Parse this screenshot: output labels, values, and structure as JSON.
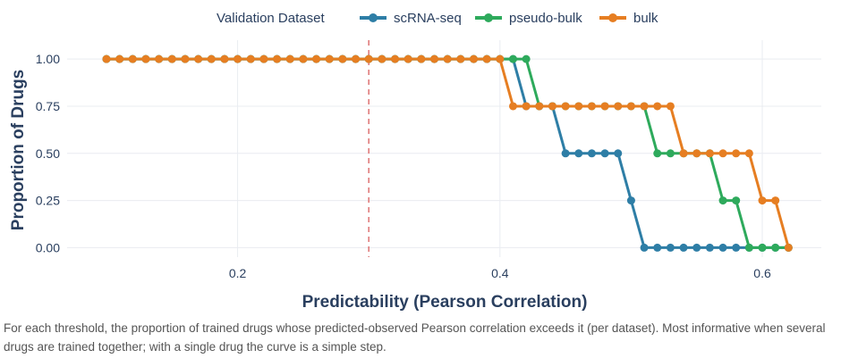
{
  "chart_data": {
    "type": "line",
    "title": "",
    "xlabel": "Predictability (Pearson Correlation)",
    "ylabel": "Proportion of Drugs",
    "xlim": [
      0.07,
      0.645
    ],
    "ylim": [
      -0.05,
      1.1
    ],
    "xticks": [
      0.2,
      0.4,
      0.6
    ],
    "xtick_labels": [
      "0.2",
      "0.4",
      "0.6"
    ],
    "yticks": [
      0,
      0.25,
      0.5,
      0.75,
      1
    ],
    "ytick_labels": [
      "0.00",
      "0.25",
      "0.50",
      "0.75",
      "1.00"
    ],
    "grid": true,
    "legend_title": "Validation Dataset",
    "legend_position": "top",
    "reference_line": {
      "x": 0.3,
      "style": "dashed",
      "color": "#e07b7b"
    },
    "x": [
      0.1,
      0.11,
      0.12,
      0.13,
      0.14,
      0.15,
      0.16,
      0.17,
      0.18,
      0.19,
      0.2,
      0.21,
      0.22,
      0.23,
      0.24,
      0.25,
      0.26,
      0.27,
      0.28,
      0.29,
      0.3,
      0.31,
      0.32,
      0.33,
      0.34,
      0.35,
      0.36,
      0.37,
      0.38,
      0.39,
      0.4,
      0.41,
      0.42,
      0.43,
      0.44,
      0.45,
      0.46,
      0.47,
      0.48,
      0.49,
      0.5,
      0.51,
      0.52,
      0.53,
      0.54,
      0.55,
      0.56,
      0.57,
      0.58,
      0.59,
      0.6,
      0.61,
      0.62
    ],
    "series": [
      {
        "name": "scRNA-seq",
        "color": "#2e7ea6",
        "values": [
          1,
          1,
          1,
          1,
          1,
          1,
          1,
          1,
          1,
          1,
          1,
          1,
          1,
          1,
          1,
          1,
          1,
          1,
          1,
          1,
          1,
          1,
          1,
          1,
          1,
          1,
          1,
          1,
          1,
          1,
          1,
          1,
          0.75,
          0.75,
          0.75,
          0.5,
          0.5,
          0.5,
          0.5,
          0.5,
          0.25,
          0,
          0,
          0,
          0,
          0,
          0,
          0,
          0,
          0,
          0,
          0,
          0
        ]
      },
      {
        "name": "pseudo-bulk",
        "color": "#2eaa5c",
        "values": [
          1,
          1,
          1,
          1,
          1,
          1,
          1,
          1,
          1,
          1,
          1,
          1,
          1,
          1,
          1,
          1,
          1,
          1,
          1,
          1,
          1,
          1,
          1,
          1,
          1,
          1,
          1,
          1,
          1,
          1,
          1,
          1,
          1,
          0.75,
          0.75,
          0.75,
          0.75,
          0.75,
          0.75,
          0.75,
          0.75,
          0.75,
          0.5,
          0.5,
          0.5,
          0.5,
          0.5,
          0.25,
          0.25,
          0,
          0,
          0,
          0
        ]
      },
      {
        "name": "bulk",
        "color": "#e67e22",
        "values": [
          1,
          1,
          1,
          1,
          1,
          1,
          1,
          1,
          1,
          1,
          1,
          1,
          1,
          1,
          1,
          1,
          1,
          1,
          1,
          1,
          1,
          1,
          1,
          1,
          1,
          1,
          1,
          1,
          1,
          1,
          1,
          0.75,
          0.75,
          0.75,
          0.75,
          0.75,
          0.75,
          0.75,
          0.75,
          0.75,
          0.75,
          0.75,
          0.75,
          0.75,
          0.5,
          0.5,
          0.5,
          0.5,
          0.5,
          0.5,
          0.25,
          0.25,
          0
        ]
      }
    ]
  },
  "caption": "For each threshold, the proportion of trained drugs whose predicted-observed Pearson correlation exceeds it (per dataset). Most informative when several drugs are trained together; with a single drug the curve is a simple step."
}
